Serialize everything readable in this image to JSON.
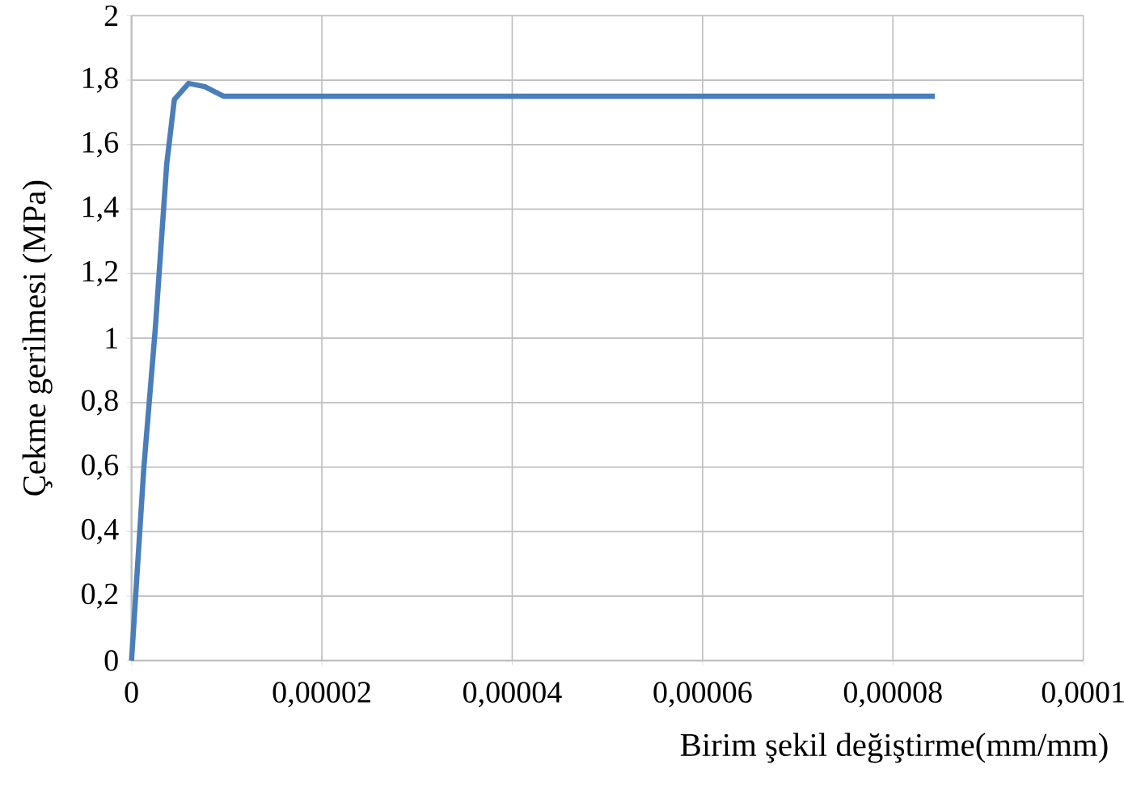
{
  "chart_data": {
    "type": "line",
    "xlabel": "Birim şekil değiştirme(mm/mm)",
    "ylabel": "Çekme gerilmesi (MPa)",
    "x": [
      0,
      1.3e-06,
      2.5e-06,
      3.7e-06,
      4.5e-06,
      6e-06,
      7.7e-06,
      9.7e-06,
      8.44e-05
    ],
    "series": [
      {
        "color": "#4a7ebb",
        "values": [
          0,
          0.6,
          1.03,
          1.54,
          1.74,
          1.79,
          1.78,
          1.75,
          1.75
        ]
      }
    ],
    "xlim": [
      0,
      0.0001
    ],
    "xticks": [
      0,
      {
        "value": 2e-05,
        "label": "0,00002"
      },
      {
        "value": 4e-05,
        "label": "0,00004"
      },
      {
        "value": 6e-05,
        "label": "0,00006"
      },
      {
        "value": 8e-05,
        "label": "0,00008"
      },
      {
        "value": 0.0001,
        "label": "0,0001"
      }
    ],
    "ylim": [
      0,
      2
    ],
    "yticks": [
      0,
      {
        "value": 0.2,
        "label": "0,2"
      },
      {
        "value": 0.4,
        "label": "0,4"
      },
      {
        "value": 0.6,
        "label": "0,6"
      },
      {
        "value": 0.8,
        "label": "0,8"
      },
      1,
      {
        "value": 1.2,
        "label": "1,2"
      },
      {
        "value": 1.4,
        "label": "1,4"
      },
      {
        "value": 1.6,
        "label": "1,6"
      },
      {
        "value": 1.8,
        "label": "1,8"
      },
      2
    ],
    "grid": true
  }
}
